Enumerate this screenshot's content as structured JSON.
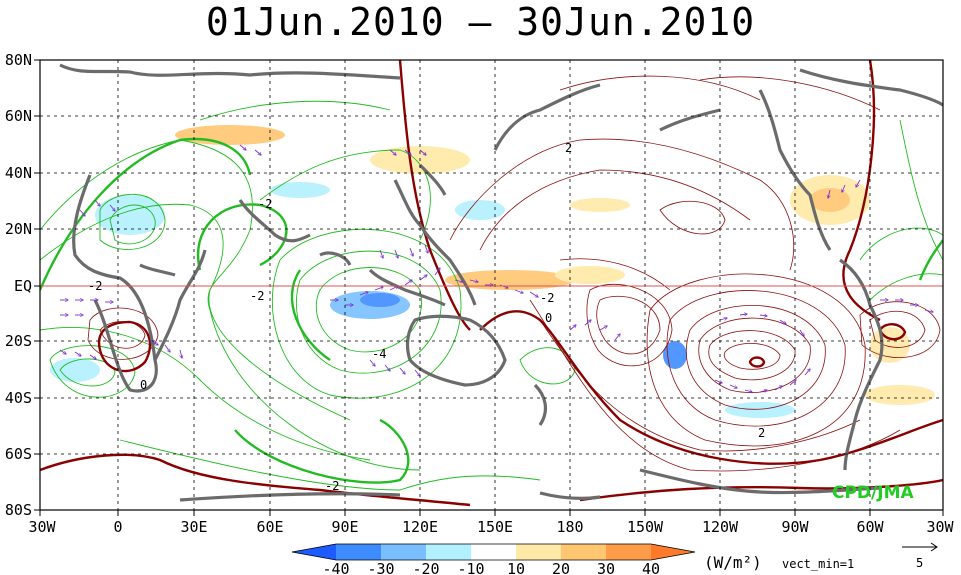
{
  "title": "01Jun.2010 – 30Jun.2010",
  "lat_labels": [
    "80N",
    "60N",
    "40N",
    "20N",
    "EQ",
    "20S",
    "40S",
    "60S",
    "80S"
  ],
  "lon_labels": [
    "30W",
    "0",
    "30E",
    "60E",
    "90E",
    "120E",
    "150E",
    "180",
    "150W",
    "120W",
    "90W",
    "60W",
    "30W"
  ],
  "colorbar": {
    "labels": [
      "-40",
      "-30",
      "-20",
      "-10",
      "10",
      "20",
      "30",
      "40"
    ],
    "colors": [
      "#1e5bff",
      "#3f8cff",
      "#79bfff",
      "#b3f0ff",
      "#ffffff",
      "#ffe9a6",
      "#ffc671",
      "#ff9c4a",
      "#ff7a2a"
    ]
  },
  "units": "(W/m²)",
  "vect_min": "vect_min=1",
  "vector_ref": "5",
  "credit": "CPD/JMA",
  "contour_labels": [
    "-2",
    "-2",
    "-2",
    "-4",
    "-2",
    "0",
    "0",
    "-2",
    "2",
    "2"
  ]
}
